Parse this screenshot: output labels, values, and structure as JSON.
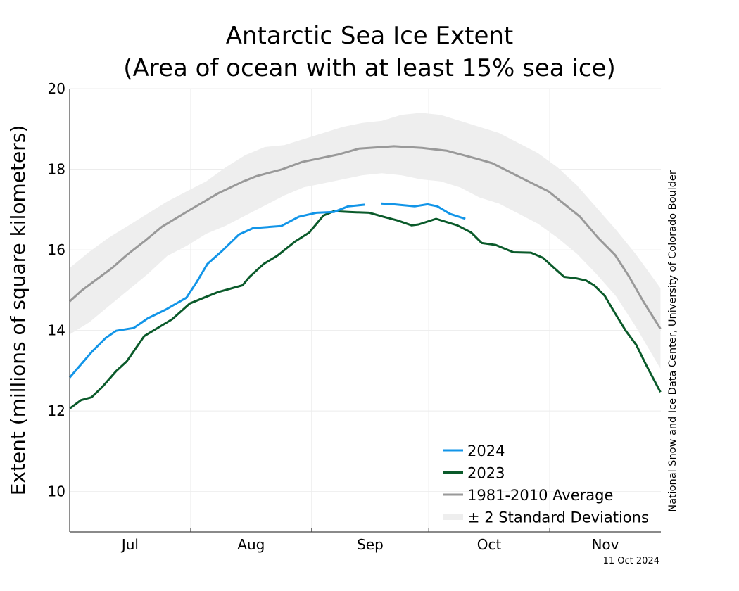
{
  "chart_data": {
    "type": "line",
    "title": "Antarctic Sea Ice Extent",
    "subtitle": "(Area of ocean with at least 15% sea ice)",
    "xlabel": "",
    "ylabel": "Extent (millions of square kilometers)",
    "x_unit": "days since Jul 1",
    "xlim": [
      0,
      151.5
    ],
    "ylim": [
      9,
      20
    ],
    "yticks": [
      10,
      12,
      14,
      16,
      18,
      20
    ],
    "month_ticks": [
      {
        "label": "Jul",
        "start": 0,
        "end": 31
      },
      {
        "label": "Aug",
        "start": 31,
        "end": 62
      },
      {
        "label": "Sep",
        "start": 62,
        "end": 92
      },
      {
        "label": "Oct",
        "start": 92,
        "end": 123
      },
      {
        "label": "Nov",
        "start": 123,
        "end": 151.5
      }
    ],
    "grid": true,
    "legend_position": "bottom-right",
    "credit": "National Snow and Ice Data Center, University of Colorado Boulder",
    "date_stamp": "11 Oct 2024",
    "series": [
      {
        "name": "2024",
        "color": "#1295e8",
        "segments": [
          [
            [
              0,
              12.83
            ],
            [
              5.6,
              13.46
            ],
            [
              9.2,
              13.81
            ],
            [
              11.9,
              13.99
            ],
            [
              16.4,
              14.06
            ],
            [
              20,
              14.3
            ],
            [
              24.5,
              14.51
            ],
            [
              29.9,
              14.81
            ],
            [
              32.6,
              15.21
            ],
            [
              35.3,
              15.65
            ],
            [
              38.9,
              15.96
            ],
            [
              43.4,
              16.38
            ],
            [
              47,
              16.54
            ],
            [
              54.2,
              16.59
            ],
            [
              58.7,
              16.82
            ],
            [
              63.2,
              16.92
            ],
            [
              67.7,
              16.94
            ],
            [
              71.4,
              17.08
            ],
            [
              75.7,
              17.12
            ]
          ],
          [
            [
              79.8,
              17.15
            ],
            [
              83,
              17.13
            ],
            [
              88.5,
              17.08
            ],
            [
              91.7,
              17.13
            ],
            [
              94.2,
              17.08
            ],
            [
              97.5,
              16.89
            ],
            [
              101.4,
              16.77
            ]
          ]
        ]
      },
      {
        "name": "2023",
        "color": "#0a5a2a",
        "segments": [
          [
            [
              0,
              12.06
            ],
            [
              2.9,
              12.27
            ],
            [
              5.6,
              12.34
            ],
            [
              8.3,
              12.59
            ],
            [
              11.9,
              12.99
            ],
            [
              14.6,
              13.23
            ],
            [
              19.1,
              13.86
            ],
            [
              22.7,
              14.07
            ],
            [
              26.3,
              14.28
            ],
            [
              30.8,
              14.67
            ],
            [
              34.4,
              14.81
            ],
            [
              38,
              14.95
            ],
            [
              44.3,
              15.12
            ],
            [
              46.1,
              15.33
            ],
            [
              49.7,
              15.65
            ],
            [
              53.3,
              15.86
            ],
            [
              57.8,
              16.21
            ],
            [
              61.4,
              16.43
            ],
            [
              65,
              16.85
            ],
            [
              67.7,
              16.96
            ],
            [
              71.4,
              16.94
            ],
            [
              76.8,
              16.92
            ],
            [
              80.4,
              16.82
            ],
            [
              84,
              16.73
            ],
            [
              87.6,
              16.61
            ],
            [
              89.4,
              16.63
            ],
            [
              93.9,
              16.77
            ],
            [
              99.3,
              16.61
            ],
            [
              102.9,
              16.43
            ],
            [
              105.6,
              16.17
            ],
            [
              109.2,
              16.12
            ],
            [
              113.7,
              15.94
            ],
            [
              118.2,
              15.93
            ],
            [
              121.3,
              15.8
            ],
            [
              124.5,
              15.52
            ],
            [
              126.7,
              15.33
            ],
            [
              129.5,
              15.3
            ],
            [
              132.3,
              15.24
            ],
            [
              134.4,
              15.12
            ],
            [
              137.1,
              14.86
            ],
            [
              139.8,
              14.42
            ],
            [
              142.5,
              13.99
            ],
            [
              145.2,
              13.64
            ],
            [
              147.9,
              13.11
            ],
            [
              151.4,
              12.47
            ]
          ]
        ]
      },
      {
        "name": "1981-2010 Average",
        "color": "#999999",
        "segments": [
          [
            [
              0,
              14.72
            ],
            [
              3.2,
              15.0
            ],
            [
              11,
              15.56
            ],
            [
              14.6,
              15.87
            ],
            [
              19.1,
              16.21
            ],
            [
              23.6,
              16.57
            ],
            [
              30.8,
              16.99
            ],
            [
              38,
              17.4
            ],
            [
              44.3,
              17.69
            ],
            [
              47.9,
              17.83
            ],
            [
              54.2,
              17.99
            ],
            [
              59.6,
              18.18
            ],
            [
              68.6,
              18.36
            ],
            [
              74.1,
              18.51
            ],
            [
              83.1,
              18.57
            ],
            [
              90.3,
              18.53
            ],
            [
              96.6,
              18.46
            ],
            [
              104.7,
              18.25
            ],
            [
              108.3,
              18.15
            ],
            [
              117.3,
              17.71
            ],
            [
              122.7,
              17.45
            ],
            [
              126.3,
              17.17
            ],
            [
              130.8,
              16.82
            ],
            [
              135.3,
              16.31
            ],
            [
              139.8,
              15.87
            ],
            [
              143.4,
              15.33
            ],
            [
              147,
              14.72
            ],
            [
              151.4,
              14.04
            ]
          ]
        ]
      }
    ],
    "band": {
      "name": "± 2 Standard Deviations",
      "color": "#eeeeee",
      "x": [
        0,
        5,
        10,
        15,
        20,
        25,
        30,
        35,
        40,
        45,
        50,
        55,
        60,
        65,
        70,
        75,
        80,
        85,
        90,
        95,
        100,
        105,
        110,
        115,
        120,
        125,
        130,
        135,
        140,
        145,
        151.4
      ],
      "upper": [
        15.55,
        15.95,
        16.3,
        16.6,
        16.9,
        17.2,
        17.45,
        17.7,
        18.05,
        18.35,
        18.55,
        18.6,
        18.75,
        18.9,
        19.05,
        19.15,
        19.2,
        19.35,
        19.4,
        19.35,
        19.2,
        19.05,
        18.9,
        18.65,
        18.4,
        18.05,
        17.6,
        17.05,
        16.5,
        15.9,
        15.05
      ],
      "lower": [
        13.9,
        14.2,
        14.6,
        15.0,
        15.4,
        15.85,
        16.1,
        16.4,
        16.6,
        16.85,
        17.1,
        17.35,
        17.55,
        17.65,
        17.75,
        17.85,
        17.9,
        17.85,
        17.75,
        17.7,
        17.55,
        17.3,
        17.15,
        16.9,
        16.65,
        16.3,
        15.9,
        15.4,
        14.85,
        14.1,
        13.05
      ]
    }
  }
}
